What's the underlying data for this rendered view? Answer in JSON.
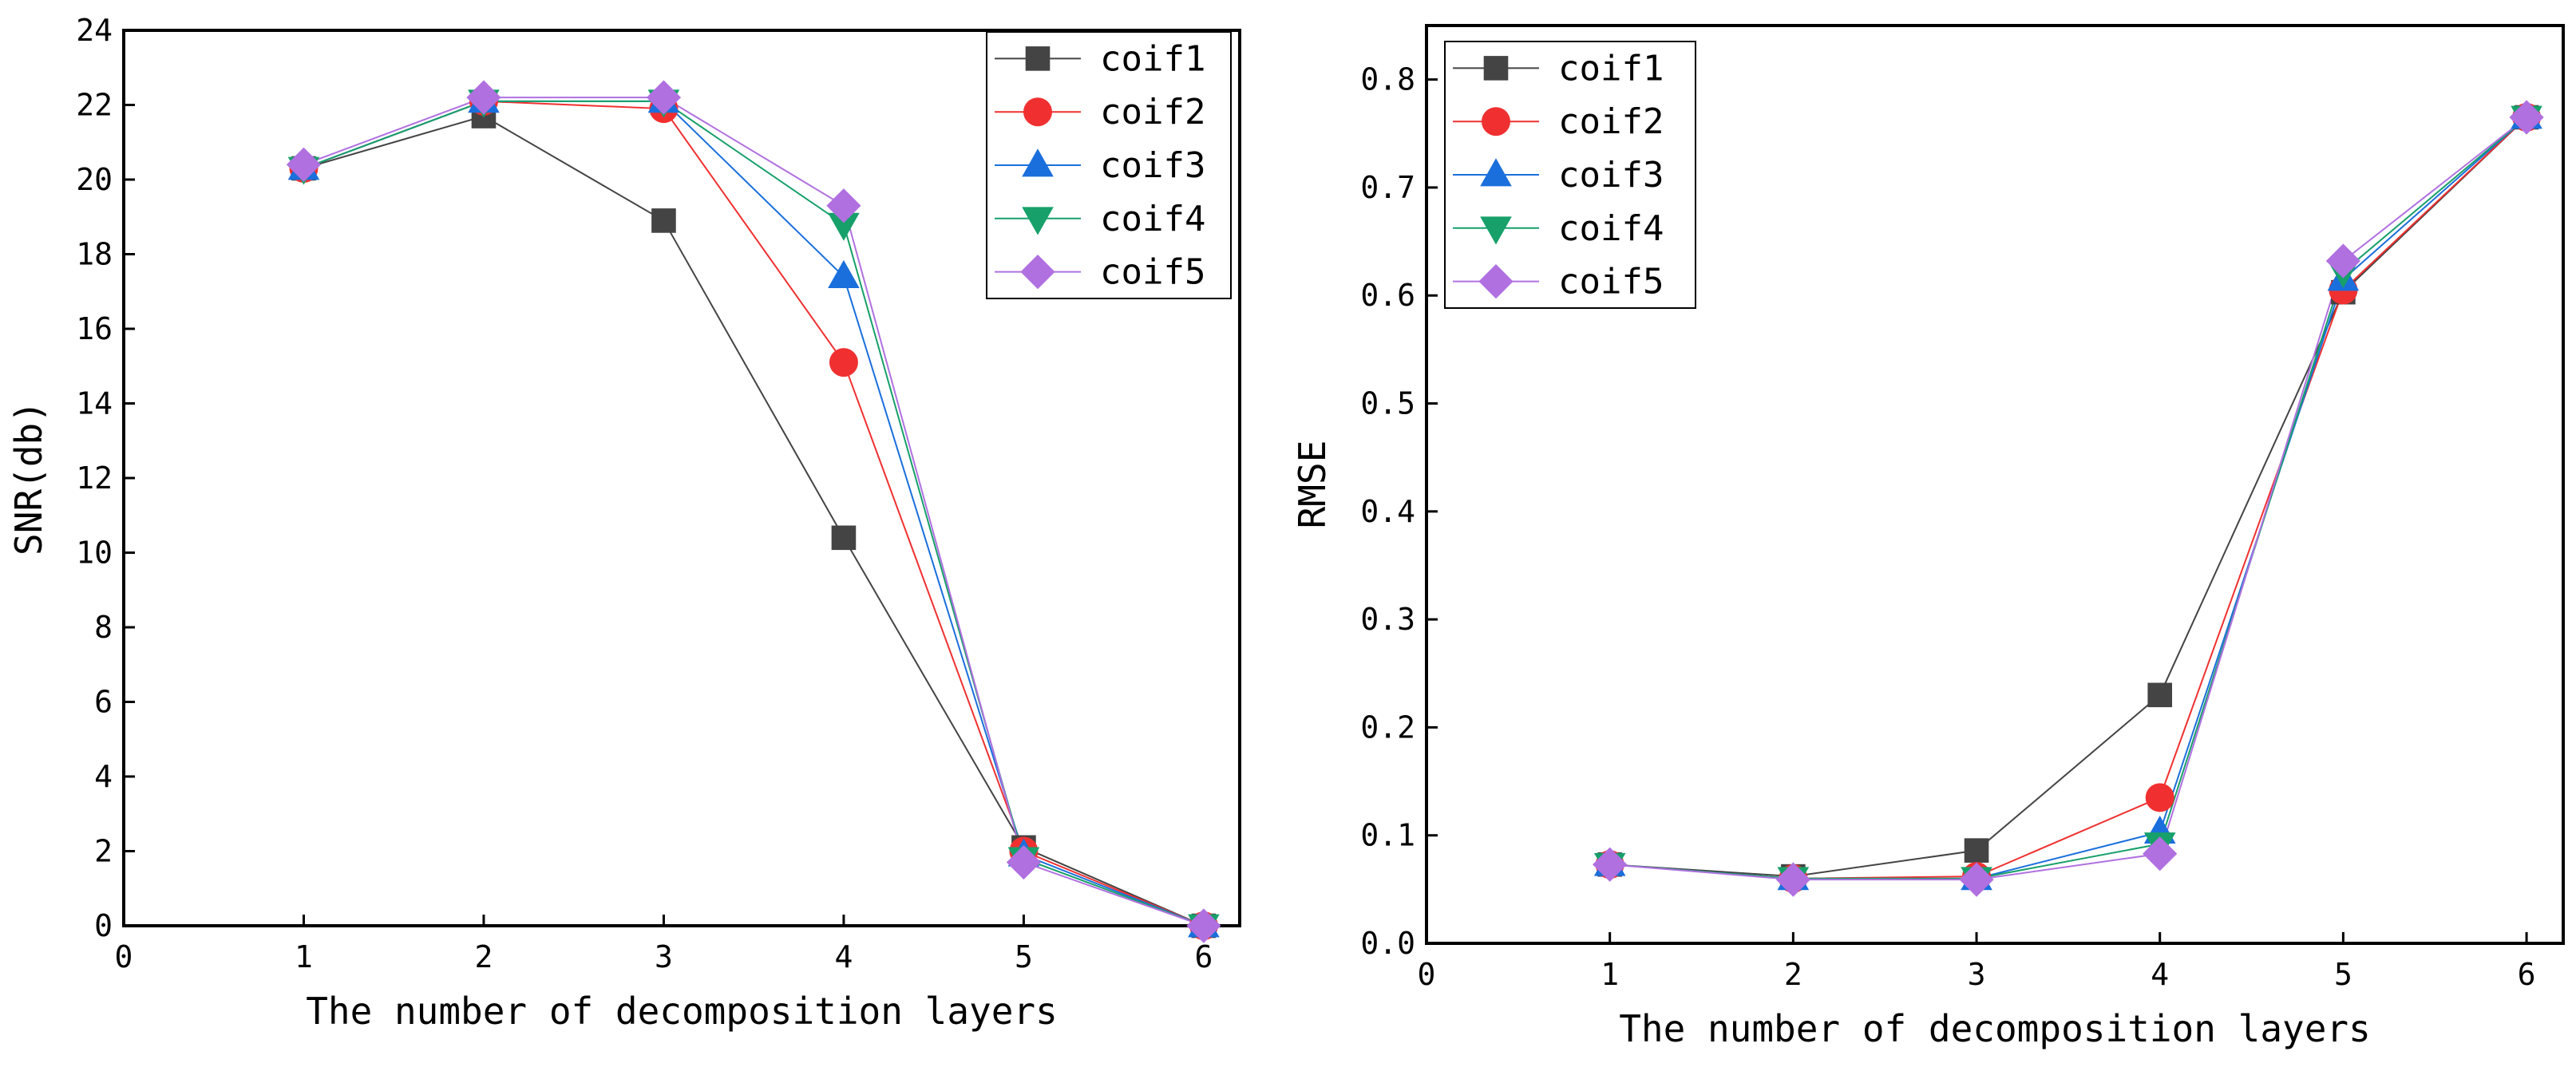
{
  "chart_data": [
    {
      "type": "line",
      "title": "",
      "xlabel": "The number of decomposition layers",
      "ylabel": "SNR(db)",
      "xlim": [
        0,
        6.2
      ],
      "ylim": [
        0,
        24
      ],
      "x_ticks": [
        0,
        1,
        2,
        3,
        4,
        5,
        6
      ],
      "y_ticks": [
        0,
        2,
        4,
        6,
        8,
        10,
        12,
        14,
        16,
        18,
        20,
        22,
        24
      ],
      "x_tick_labels": [
        "0",
        "1",
        "2",
        "3",
        "4",
        "5",
        "6"
      ],
      "y_tick_labels": [
        "0",
        "2",
        "4",
        "6",
        "8",
        "10",
        "12",
        "14",
        "16",
        "18",
        "20",
        "22",
        "24"
      ],
      "y_decimals": 0,
      "legend": "top-right",
      "x": [
        1,
        2,
        3,
        4,
        5,
        6
      ],
      "series": [
        {
          "name": "coif1",
          "color": "#444444",
          "marker": "square",
          "values": [
            20.3,
            21.7,
            18.9,
            10.4,
            2.1,
            0.0
          ]
        },
        {
          "name": "coif2",
          "color": "#f03030",
          "marker": "circle",
          "values": [
            20.3,
            22.1,
            21.9,
            15.1,
            2.0,
            0.0
          ]
        },
        {
          "name": "coif3",
          "color": "#1a6fdc",
          "marker": "triangle",
          "values": [
            20.3,
            22.1,
            22.1,
            17.4,
            1.9,
            0.0
          ]
        },
        {
          "name": "coif4",
          "color": "#17a06a",
          "marker": "tri-down",
          "values": [
            20.3,
            22.1,
            22.1,
            18.8,
            1.8,
            0.0
          ]
        },
        {
          "name": "coif5",
          "color": "#b070e0",
          "marker": "diamond",
          "values": [
            20.4,
            22.2,
            22.2,
            19.3,
            1.7,
            0.0
          ]
        }
      ]
    },
    {
      "type": "line",
      "title": "",
      "xlabel": "The number of decomposition layers",
      "ylabel": "RMSE",
      "xlim": [
        0,
        6.2
      ],
      "ylim": [
        0,
        0.85
      ],
      "x_ticks": [
        0,
        1,
        2,
        3,
        4,
        5,
        6
      ],
      "y_ticks": [
        0.0,
        0.1,
        0.2,
        0.3,
        0.4,
        0.5,
        0.6,
        0.7,
        0.8
      ],
      "x_tick_labels": [
        "0",
        "1",
        "2",
        "3",
        "4",
        "5",
        "6"
      ],
      "y_tick_labels": [
        "0.0",
        "0.1",
        "0.2",
        "0.3",
        "0.4",
        "0.5",
        "0.6",
        "0.7",
        "0.8"
      ],
      "y_decimals": 1,
      "legend": "top-left",
      "x": [
        1,
        2,
        3,
        4,
        5,
        6
      ],
      "series": [
        {
          "name": "coif1",
          "color": "#444444",
          "marker": "square",
          "values": [
            0.073,
            0.062,
            0.086,
            0.23,
            0.603,
            0.765
          ]
        },
        {
          "name": "coif2",
          "color": "#f03030",
          "marker": "circle",
          "values": [
            0.073,
            0.06,
            0.062,
            0.135,
            0.605,
            0.765
          ]
        },
        {
          "name": "coif3",
          "color": "#1a6fdc",
          "marker": "triangle",
          "values": [
            0.073,
            0.06,
            0.06,
            0.103,
            0.615,
            0.765
          ]
        },
        {
          "name": "coif4",
          "color": "#17a06a",
          "marker": "tri-down",
          "values": [
            0.073,
            0.06,
            0.06,
            0.092,
            0.622,
            0.765
          ]
        },
        {
          "name": "coif5",
          "color": "#b070e0",
          "marker": "diamond",
          "values": [
            0.073,
            0.059,
            0.059,
            0.083,
            0.632,
            0.765
          ]
        }
      ]
    }
  ]
}
